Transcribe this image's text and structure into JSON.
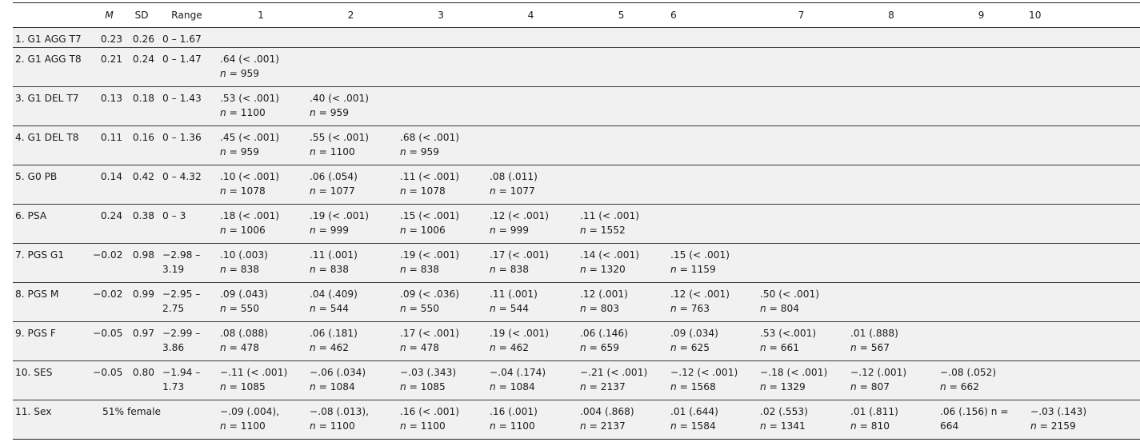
{
  "header": {
    "blank": "",
    "mean": "M",
    "sd": "SD",
    "range": "Range",
    "cols": [
      "1",
      "2",
      "3",
      "4",
      "5",
      "6",
      "7",
      "8",
      "9",
      "10"
    ]
  },
  "rows": [
    {
      "label": "1. G1 AGG T7",
      "m": "0.23",
      "sd": "0.26",
      "range": [
        "0 – 1.67"
      ],
      "cells": []
    },
    {
      "label": "2. G1 AGG T8",
      "m": "0.21",
      "sd": "0.24",
      "range": [
        "0 – 1.47"
      ],
      "cells": [
        {
          "r": ".64 (< .001)",
          "n": "= 959"
        }
      ]
    },
    {
      "label": "3. G1 DEL T7",
      "m": "0.13",
      "sd": "0.18",
      "range": [
        "0 – 1.43"
      ],
      "cells": [
        {
          "r": ".53 (< .001)",
          "n": "= 1100"
        },
        {
          "r": ".40 (< .001)",
          "n": "= 959"
        }
      ]
    },
    {
      "label": "4. G1 DEL T8",
      "m": "0.11",
      "sd": "0.16",
      "range": [
        "0 – 1.36"
      ],
      "cells": [
        {
          "r": ".45 (< .001)",
          "n": "= 959"
        },
        {
          "r": ".55 (< .001)",
          "n": "= 1100"
        },
        {
          "r": ".68 (< .001)",
          "n": "= 959"
        }
      ]
    },
    {
      "label": "5. G0 PB",
      "m": "0.14",
      "sd": "0.42",
      "range": [
        "0 – 4.32"
      ],
      "cells": [
        {
          "r": ".10 (< .001)",
          "n": "= 1078"
        },
        {
          "r": ".06 (.054)",
          "n": "= 1077"
        },
        {
          "r": ".11 (< .001)",
          "n": "= 1078"
        },
        {
          "r": ".08 (.011)",
          "n": "= 1077"
        }
      ]
    },
    {
      "label": "6. PSA",
      "m": "0.24",
      "sd": "0.38",
      "range": [
        "0 – 3"
      ],
      "cells": [
        {
          "r": ".18 (< .001)",
          "n": "= 1006"
        },
        {
          "r": ".19 (< .001)",
          "n": "= 999"
        },
        {
          "r": ".15 (< .001)",
          "n": "= 1006"
        },
        {
          "r": ".12 (< .001)",
          "n": "= 999"
        },
        {
          "r": ".11 (< .001)",
          "n": "= 1552"
        }
      ]
    },
    {
      "label": "7. PGS G1",
      "m": "−0.02",
      "sd": "0.98",
      "range": [
        "−2.98 –",
        "3.19"
      ],
      "cells": [
        {
          "r": ".10 (.003)",
          "n": "= 838"
        },
        {
          "r": ".11 (.001)",
          "n": "= 838"
        },
        {
          "r": ".19 (< .001)",
          "n": "= 838"
        },
        {
          "r": ".17 (< .001)",
          "n": "= 838"
        },
        {
          "r": ".14 (< .001)",
          "n": "= 1320"
        },
        {
          "r": ".15 (< .001)",
          "n": "= 1159"
        }
      ]
    },
    {
      "label": "8. PGS M",
      "m": "−0.02",
      "sd": "0.99",
      "range": [
        "−2.95 –",
        "2.75"
      ],
      "cells": [
        {
          "r": ".09 (.043)",
          "n": "= 550"
        },
        {
          "r": ".04 (.409)",
          "n": "= 544"
        },
        {
          "r": ".09 (< .036)",
          "n": "= 550"
        },
        {
          "r": ".11 (.001)",
          "n": "= 544"
        },
        {
          "r": ".12 (.001)",
          "n": "= 803"
        },
        {
          "r": ".12 (< .001)",
          "n": "= 763"
        },
        {
          "r": ".50 (< .001)",
          "n": "= 804"
        }
      ]
    },
    {
      "label": "9. PGS F",
      "m": "−0.05",
      "sd": "0.97",
      "range": [
        "−2.99 –",
        "3.86"
      ],
      "cells": [
        {
          "r": ".08 (.088)",
          "n": "= 478"
        },
        {
          "r": ".06 (.181)",
          "n": "= 462"
        },
        {
          "r": ".17 (< .001)",
          "n": "= 478"
        },
        {
          "r": ".19 (< .001)",
          "n": "= 462"
        },
        {
          "r": ".06 (.146)",
          "n": "= 659"
        },
        {
          "r": ".09 (.034)",
          "n": "= 625"
        },
        {
          "r": ".53 (<.001)",
          "n": "= 661"
        },
        {
          "r": ".01 (.888)",
          "n": "= 567"
        }
      ]
    },
    {
      "label": "10. SES",
      "m": "−0.05",
      "sd": "0.80",
      "range": [
        "−1.94 –",
        "1.73"
      ],
      "cells": [
        {
          "r": "−.11 (< .001)",
          "n": "= 1085"
        },
        {
          "r": "−.06 (.034)",
          "n": "= 1084"
        },
        {
          "r": "−.03 (.343)",
          "n": "= 1085"
        },
        {
          "r": "−.04 (.174)",
          "n": "= 1084"
        },
        {
          "r": "−.21 (< .001)",
          "n": "= 2137"
        },
        {
          "r": "−.12 (< .001)",
          "n": "= 1568"
        },
        {
          "r": "−.18 (< .001)",
          "n": "= 1329"
        },
        {
          "r": "−.12 (.001)",
          "n": "= 807"
        },
        {
          "r": "−.08 (.052)",
          "n": "= 662"
        }
      ]
    },
    {
      "label": "11. Sex",
      "m": "51% female",
      "sd": "",
      "range": [
        ""
      ],
      "cells": [
        {
          "r": "−.09 (.004),",
          "n": "= 1100"
        },
        {
          "r": "−.08 (.013),",
          "n": "= 1100"
        },
        {
          "r": ".16 (< .001)",
          "n": "= 1100"
        },
        {
          "r": ".16 (.001)",
          "n": "= 1100"
        },
        {
          "r": ".004 (.868)",
          "n": "= 2137"
        },
        {
          "r": ".01 (.644)",
          "n": "= 1584"
        },
        {
          "r": ".02 (.553)",
          "n": "= 1341"
        },
        {
          "r": ".01 (.811)",
          "n": "= 810"
        },
        {
          "r": ".06 (.156) n =",
          "n0": "664"
        },
        {
          "r": "−.03 (.143)",
          "n": "= 2159"
        }
      ]
    }
  ]
}
